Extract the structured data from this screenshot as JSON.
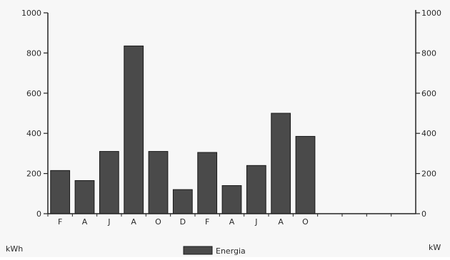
{
  "chart_data": {
    "type": "bar",
    "categories": [
      "F",
      "A",
      "J",
      "A",
      "O",
      "D",
      "F",
      "A",
      "J",
      "A",
      "O"
    ],
    "series": [
      {
        "name": "Energia",
        "values": [
          215,
          165,
          310,
          835,
          310,
          120,
          305,
          140,
          240,
          500,
          385
        ]
      }
    ],
    "ylim": [
      0,
      1000
    ],
    "yticks": [
      "0",
      "200",
      "400",
      "600",
      "800",
      "1000"
    ],
    "y2lim": [
      0,
      1000
    ],
    "y2ticks": [
      "0",
      "200",
      "400",
      "600",
      "800",
      "1000"
    ],
    "ylabel": "kWh",
    "y2label": "kW",
    "empty_slots_after": 4,
    "legend": {
      "position": "bottom-center",
      "label": "Energia"
    },
    "grid": false,
    "colors": {
      "bar": "#4a4a4a",
      "axis": "#222222",
      "background": "#f7f7f7"
    }
  }
}
